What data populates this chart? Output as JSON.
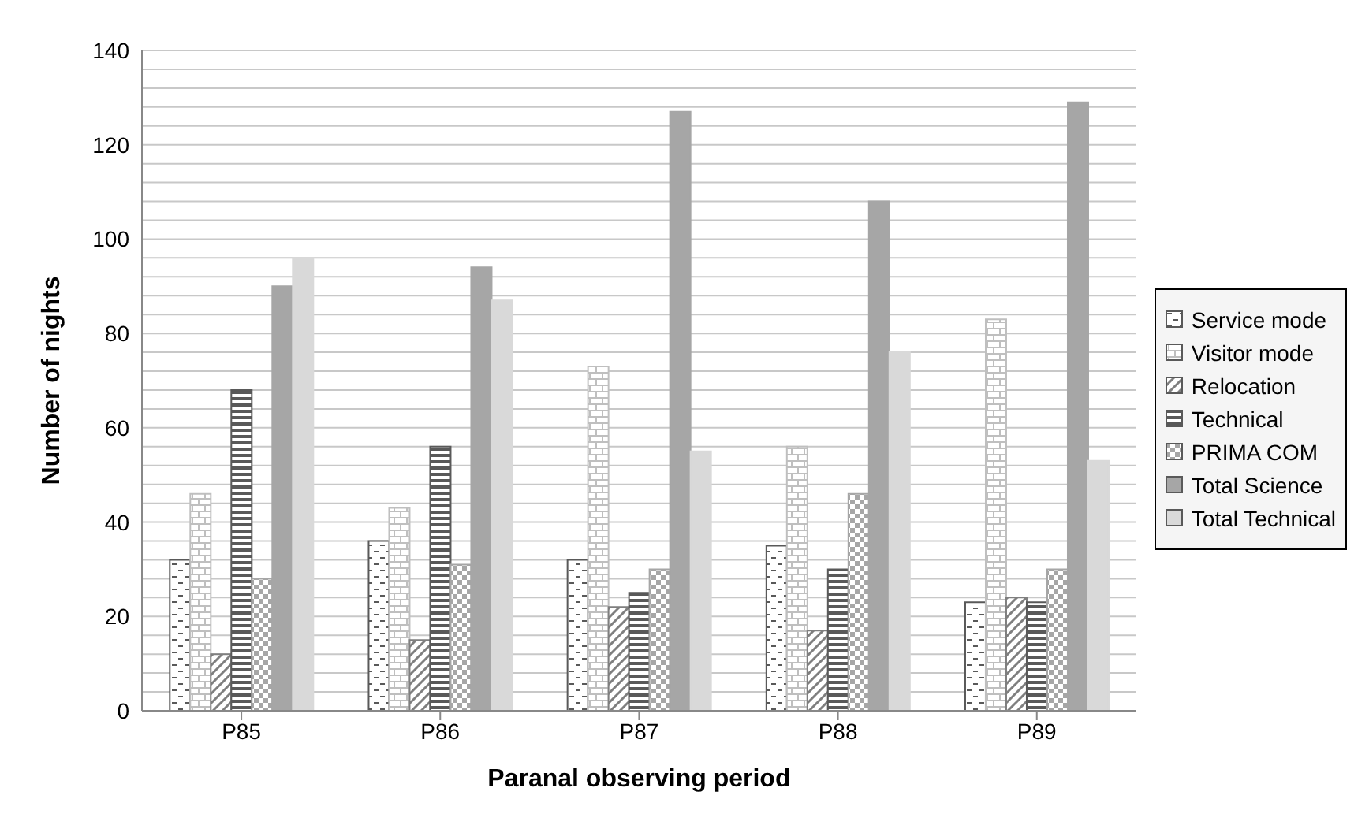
{
  "chart_data": {
    "type": "bar",
    "xlabel": "Paranal observing period",
    "ylabel": "Number of nights",
    "categories": [
      "P85",
      "P86",
      "P87",
      "P88",
      "P89"
    ],
    "series": [
      {
        "name": "Service mode",
        "color": "#595959",
        "values": [
          32,
          36,
          32,
          35,
          23
        ]
      },
      {
        "name": "Visitor mode",
        "color": "#bfbfbf",
        "values": [
          46,
          43,
          73,
          56,
          83
        ]
      },
      {
        "name": "Relocation",
        "color": "#7f7f7f",
        "values": [
          12,
          15,
          22,
          17,
          24
        ]
      },
      {
        "name": "Technical",
        "color": "#595959",
        "values": [
          68,
          56,
          25,
          30,
          23
        ]
      },
      {
        "name": "PRIMA COM",
        "color": "#a6a6a6",
        "values": [
          28,
          31,
          30,
          46,
          30
        ]
      },
      {
        "name": "Total Science",
        "color": "#a6a6a6",
        "values": [
          90,
          94,
          127,
          108,
          129
        ]
      },
      {
        "name": "Total Technical",
        "color": "#d9d9d9",
        "values": [
          96,
          87,
          55,
          76,
          53
        ]
      }
    ],
    "ylim": [
      0,
      140
    ],
    "yticks": [
      0,
      {
        "value": 4,
        "label": null
      },
      {
        "value": 8,
        "label": null
      },
      {
        "value": 12,
        "label": null
      },
      {
        "value": 16,
        "label": null
      },
      20,
      {
        "value": 24,
        "label": null
      },
      {
        "value": 28,
        "label": null
      },
      {
        "value": 32,
        "label": null
      },
      {
        "value": 36,
        "label": null
      },
      40,
      {
        "value": 44,
        "label": null
      },
      {
        "value": 48,
        "label": null
      },
      {
        "value": 52,
        "label": null
      },
      {
        "value": 56,
        "label": null
      },
      60,
      {
        "value": 64,
        "label": null
      },
      {
        "value": 68,
        "label": null
      },
      {
        "value": 72,
        "label": null
      },
      {
        "value": 76,
        "label": null
      },
      80,
      {
        "value": 84,
        "label": null
      },
      {
        "value": 88,
        "label": null
      },
      {
        "value": 92,
        "label": null
      },
      {
        "value": 96,
        "label": null
      },
      100,
      {
        "value": 104,
        "label": null
      },
      {
        "value": 108,
        "label": null
      },
      {
        "value": 112,
        "label": null
      },
      {
        "value": 116,
        "label": null
      },
      120,
      {
        "value": 124,
        "label": null
      },
      {
        "value": 128,
        "label": null
      },
      {
        "value": 132,
        "label": null
      },
      {
        "value": 136,
        "label": null
      },
      140
    ],
    "grid": "y",
    "legend": "right"
  }
}
